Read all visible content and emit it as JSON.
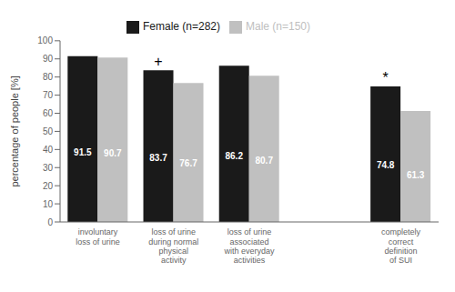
{
  "chart_data": {
    "type": "bar",
    "categories": [
      "involuntary\nloss of urine",
      "loss of urine\nduring normal\nphysical\nactivity",
      "loss of urine\nassociated\nwith everyday\nactivities",
      null,
      "completely\ncorrect\ndefinition\nof SUI"
    ],
    "series": [
      {
        "name": "Female (n=282)",
        "color": "#1a1a1a",
        "values": [
          91.5,
          83.7,
          86.2,
          null,
          74.8
        ]
      },
      {
        "name": "Male (n=150)",
        "color": "#c0c0c0",
        "values": [
          90.7,
          76.7,
          80.7,
          null,
          61.3
        ]
      }
    ],
    "ylabel": "percentage of people [%]",
    "ylim": [
      0,
      100
    ],
    "yticks": [
      0,
      10,
      20,
      30,
      40,
      50,
      60,
      70,
      80,
      90,
      100
    ],
    "grid": false,
    "legend": "top",
    "data_labels": true,
    "annotations": [
      {
        "text": "+",
        "series": "Female (n=282)",
        "category_index": 1
      },
      {
        "text": "*",
        "series": "Female (n=282)",
        "category_index": 4
      }
    ]
  }
}
